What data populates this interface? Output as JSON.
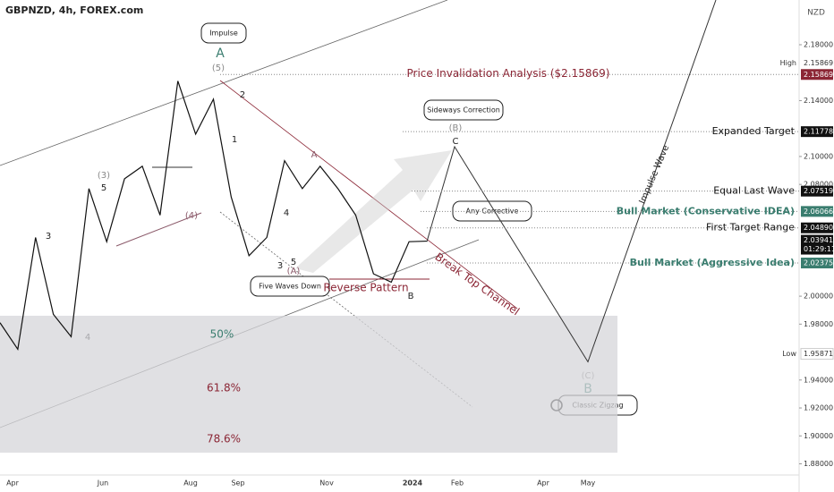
{
  "symbol": "GBPNZD, 4h, FOREX.com",
  "currency": "NZD",
  "chart_data": {
    "type": "line",
    "values": [
      1.981,
      1.962,
      2.042,
      1.987,
      1.971,
      2.077,
      2.039,
      2.084,
      2.093,
      2.058,
      2.154,
      2.116,
      2.141,
      2.071,
      2.029,
      2.042,
      2.097,
      2.077,
      2.093,
      2.077,
      2.058,
      2.016,
      2.01,
      2.039,
      2.0394
    ],
    "color": "#111111",
    "ylim": [
      1.872,
      2.212
    ],
    "yticks": [
      {
        "value": 2.18,
        "label": "2.18000"
      },
      {
        "value": 2.14,
        "label": "2.14000"
      },
      {
        "value": 2.1,
        "label": "2.10000"
      },
      {
        "value": 2.08,
        "label": "2.08000"
      },
      {
        "value": 2.0,
        "label": "2.00000"
      },
      {
        "value": 1.98,
        "label": "1.98000"
      },
      {
        "value": 1.94,
        "label": "1.94000"
      },
      {
        "value": 1.92,
        "label": "1.92000"
      },
      {
        "value": 1.9,
        "label": "1.90000"
      },
      {
        "value": 1.88,
        "label": "1.88000"
      }
    ],
    "x_labels": [
      "Apr",
      "Jun",
      "Aug",
      "Sep",
      "Nov",
      "2024",
      "Feb",
      "Apr",
      "May"
    ],
    "projection": [
      2.039,
      2.107,
      1.953,
      2.212
    ],
    "levels": [
      {
        "text": "Price Invalidation Analysis ($2.15869)",
        "value": 2.15869,
        "label": "2.15869",
        "color": "#8b2635"
      },
      {
        "text": "Expanded Target",
        "value": 2.11778,
        "label": "2.11778",
        "color": "#111111"
      },
      {
        "text": "Equal Last Wave",
        "value": 2.07519,
        "label": "2.07519",
        "color": "#111111"
      },
      {
        "text": "Bull Market (Conservative IDEA)",
        "value": 2.06066,
        "label": "2.06066",
        "color": "#3a7d6f"
      },
      {
        "text": "First Target Range",
        "value": 2.0489,
        "label": "2.04890",
        "color": "#111111"
      },
      {
        "text": "Bull Market (Aggressive Idea)",
        "value": 2.02375,
        "label": "2.02375",
        "color": "#3a7d6f"
      }
    ],
    "current": {
      "value": 2.03941,
      "label": "2.03941",
      "countdown": "01:29:11"
    },
    "high": {
      "tag": "High",
      "value": 2.15869,
      "label": "2.15869"
    },
    "low": {
      "tag": "Low",
      "value": 1.95871,
      "label": "1.95871"
    },
    "fib_zone": [
      1.986,
      1.888
    ],
    "fib": [
      "50%",
      "61.8%",
      "78.6%"
    ],
    "annotations": [
      "Impulse",
      "A",
      "(5)",
      "Sideways Correction",
      "(B)",
      "C",
      "Any Corrective",
      "Five Waves Down",
      "Reverse Pattern",
      "B",
      "Break Top Channel",
      "Impulse Wave",
      "(C)",
      "B",
      "Classic Zigzag",
      "3",
      "4",
      "(3)",
      "5",
      "(4)",
      "1",
      "2",
      "3",
      "4",
      "5",
      "(A)",
      "A"
    ]
  }
}
